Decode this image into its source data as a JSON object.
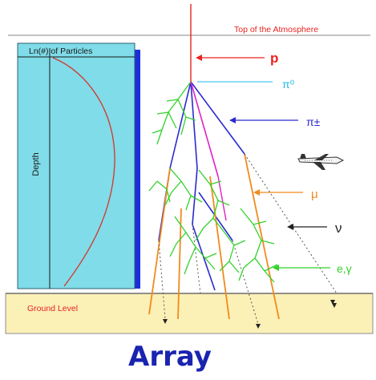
{
  "labels": {
    "top_of_atmosphere": "Top of the Atmosphere",
    "particles_axis": "Ln(#) of Particles",
    "depth_axis": "Depth",
    "ground_level": "Ground Level",
    "proton": "p",
    "neutral_pion": "π⁰",
    "charged_pion": "π±",
    "muon": "μ",
    "neutrino": "ν",
    "electron_gamma": "e,γ",
    "caption": "Array"
  },
  "colors": {
    "proton": "#e8231f",
    "neutral_pion": "#1fb8e8",
    "charged_pion": "#2a2ad0",
    "muon": "#f28a1c",
    "neutrino": "#222222",
    "electron_gamma": "#33d12b",
    "pink_track": "#e020c8",
    "panel_fill": "#7fdce8",
    "panel_shadow": "#1b2fd8",
    "ground_fill": "#fbf0b6",
    "caption": "#1a24b0",
    "label_red": "#e8231f"
  },
  "icons": {
    "airplane": "airplane-icon"
  }
}
